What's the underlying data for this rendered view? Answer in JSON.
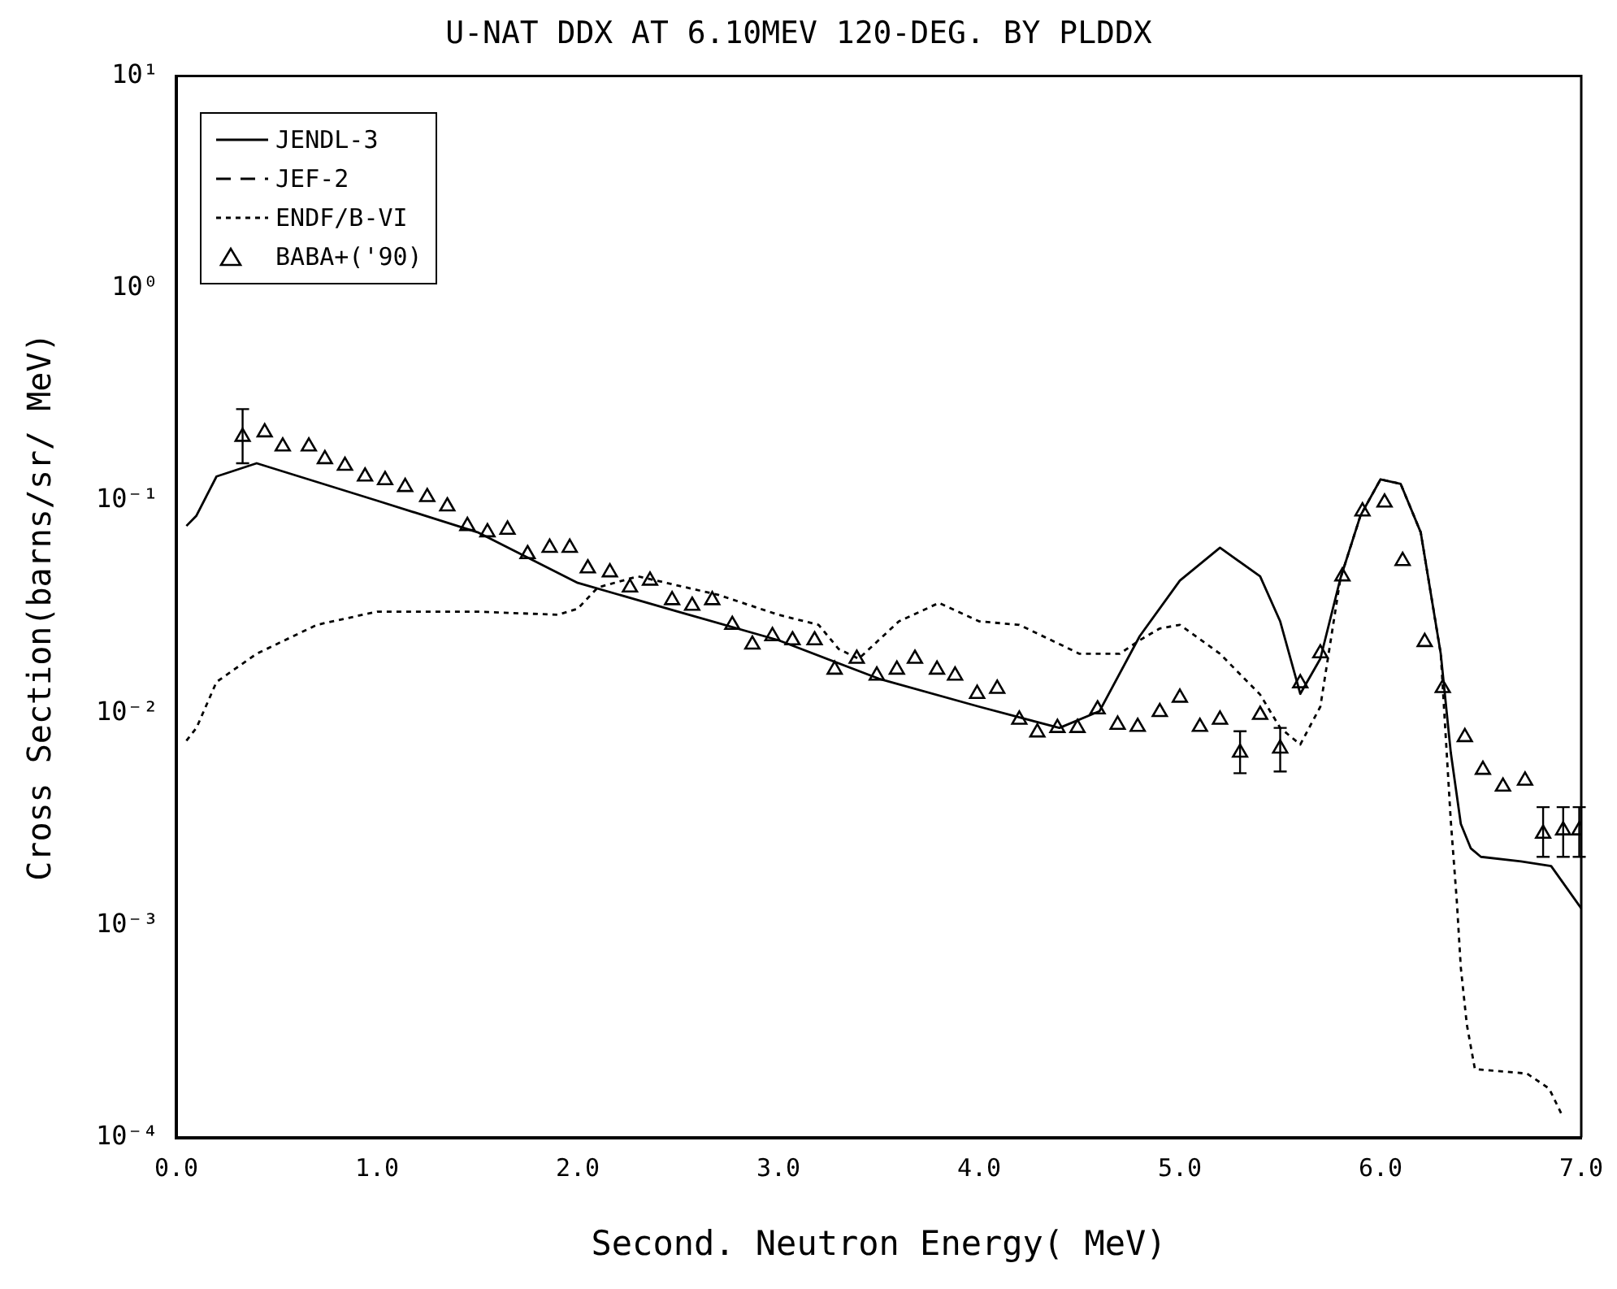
{
  "chart_data": {
    "type": "line",
    "title": "U-NAT DDX AT 6.10MEV 120-DEG. BY PLDDX",
    "xlabel": "Second. Neutron Energy( MeV)",
    "ylabel": "Cross Section(barns/sr/ MeV)",
    "xlim": [
      0,
      7
    ],
    "xticks": [
      {
        "value": 0,
        "label": "0.0"
      },
      {
        "value": 1,
        "label": "1.0"
      },
      {
        "value": 2,
        "label": "2.0"
      },
      {
        "value": 3,
        "label": "3.0"
      },
      {
        "value": 4,
        "label": "4.0"
      },
      {
        "value": 5,
        "label": "5.0"
      },
      {
        "value": 6,
        "label": "6.0"
      },
      {
        "value": 7,
        "label": "7.0"
      }
    ],
    "ylim": [
      0.0001,
      10
    ],
    "yticks": [
      {
        "value": 10,
        "label": "10¹"
      },
      {
        "value": 1,
        "label": "10⁰"
      },
      {
        "value": 0.1,
        "label": "10⁻¹"
      },
      {
        "value": 0.01,
        "label": "10⁻²"
      },
      {
        "value": 0.001,
        "label": "10⁻³"
      },
      {
        "value": 0.0001,
        "label": "10⁻⁴"
      }
    ],
    "log": "y",
    "grid": false,
    "legend": "top left",
    "series": [
      {
        "name": "JENDL-3",
        "line_style": "solid",
        "marker": "none",
        "color": "#000000",
        "x": [
          0.05,
          0.1,
          0.2,
          0.4,
          1.0,
          1.5,
          2.0,
          2.5,
          3.0,
          3.5,
          4.0,
          4.4,
          4.6,
          4.8,
          5.0,
          5.2,
          5.4,
          5.5,
          5.6,
          5.7,
          5.8,
          5.9,
          6.0,
          6.1,
          6.2,
          6.3,
          6.35,
          6.4,
          6.45,
          6.5,
          6.7,
          6.85,
          7.0
        ],
        "values": [
          0.076,
          0.085,
          0.13,
          0.15,
          0.1,
          0.071,
          0.041,
          0.03,
          0.022,
          0.0145,
          0.0107,
          0.0085,
          0.0102,
          0.023,
          0.042,
          0.06,
          0.044,
          0.027,
          0.0123,
          0.018,
          0.043,
          0.085,
          0.126,
          0.12,
          0.071,
          0.019,
          0.0065,
          0.003,
          0.0023,
          0.0021,
          0.002,
          0.0019,
          0.0012
        ]
      },
      {
        "name": "JEF-2",
        "line_style": "dashed",
        "marker": "none",
        "color": "#000000"
      },
      {
        "name": "ENDF/B-VI",
        "line_style": "dotted",
        "marker": "none",
        "color": "#000000",
        "x": [
          0.05,
          0.1,
          0.2,
          0.4,
          0.7,
          1.0,
          1.5,
          1.9,
          2.0,
          2.1,
          2.3,
          2.7,
          3.0,
          3.2,
          3.3,
          3.4,
          3.6,
          3.8,
          4.0,
          4.2,
          4.5,
          4.7,
          4.8,
          4.9,
          5.0,
          5.2,
          5.4,
          5.5,
          5.6,
          5.7,
          5.8,
          5.9,
          6.0,
          6.1,
          6.2,
          6.3,
          6.35,
          6.38,
          6.4,
          6.43,
          6.47,
          6.73,
          6.84,
          6.9
        ],
        "values": [
          0.0074,
          0.0085,
          0.014,
          0.019,
          0.026,
          0.03,
          0.03,
          0.029,
          0.031,
          0.039,
          0.044,
          0.036,
          0.029,
          0.026,
          0.02,
          0.018,
          0.027,
          0.033,
          0.027,
          0.026,
          0.019,
          0.019,
          0.022,
          0.025,
          0.026,
          0.019,
          0.0122,
          0.0085,
          0.0071,
          0.0107,
          0.043,
          0.085,
          0.126,
          0.12,
          0.071,
          0.019,
          0.0031,
          0.0013,
          0.00063,
          0.00034,
          0.00021,
          0.0002,
          0.00017,
          0.00013
        ]
      },
      {
        "name": "BABA+('90)",
        "type": "scatter",
        "marker": "triangle",
        "color": "#000000",
        "x": [
          0.33,
          0.44,
          0.53,
          0.66,
          0.74,
          0.84,
          0.94,
          1.04,
          1.14,
          1.25,
          1.35,
          1.45,
          1.55,
          1.65,
          1.75,
          1.86,
          1.96,
          2.05,
          2.16,
          2.26,
          2.36,
          2.47,
          2.57,
          2.67,
          2.77,
          2.87,
          2.97,
          3.07,
          3.18,
          3.28,
          3.39,
          3.49,
          3.59,
          3.68,
          3.79,
          3.88,
          3.99,
          4.09,
          4.2,
          4.29,
          4.39,
          4.49,
          4.59,
          4.69,
          4.79,
          4.9,
          5.0,
          5.1,
          5.2,
          5.3,
          5.4,
          5.5,
          5.6,
          5.7,
          5.81,
          5.91,
          6.02,
          6.11,
          6.22,
          6.31,
          6.42,
          6.51,
          6.61,
          6.72,
          6.81,
          6.91,
          6.99
        ],
        "values": [
          0.2,
          0.21,
          0.18,
          0.18,
          0.157,
          0.146,
          0.13,
          0.125,
          0.116,
          0.104,
          0.094,
          0.076,
          0.071,
          0.073,
          0.056,
          0.06,
          0.06,
          0.048,
          0.046,
          0.039,
          0.042,
          0.034,
          0.032,
          0.034,
          0.026,
          0.021,
          0.023,
          0.022,
          0.022,
          0.016,
          0.018,
          0.015,
          0.016,
          0.018,
          0.016,
          0.015,
          0.0123,
          0.013,
          0.0093,
          0.0081,
          0.0085,
          0.0085,
          0.0104,
          0.0088,
          0.0086,
          0.0101,
          0.0118,
          0.0086,
          0.0093,
          0.0065,
          0.0098,
          0.0068,
          0.0138,
          0.0191,
          0.044,
          0.089,
          0.098,
          0.052,
          0.0216,
          0.0131,
          0.0077,
          0.0054,
          0.0045,
          0.0048,
          0.0027,
          0.0028,
          0.0028
        ],
        "errors": [
          [
            0.15,
            0.27
          ],
          null,
          null,
          null,
          null,
          null,
          null,
          null,
          null,
          null,
          null,
          null,
          null,
          null,
          null,
          null,
          null,
          null,
          null,
          null,
          null,
          null,
          null,
          null,
          null,
          null,
          null,
          null,
          null,
          null,
          null,
          null,
          null,
          null,
          null,
          null,
          null,
          null,
          null,
          null,
          null,
          null,
          null,
          null,
          null,
          null,
          null,
          null,
          null,
          [
            0.0052,
            0.0082
          ],
          null,
          [
            0.0053,
            0.0085
          ],
          null,
          null,
          null,
          null,
          null,
          null,
          null,
          null,
          null,
          null,
          null,
          null,
          [
            0.0021,
            0.0036
          ],
          [
            0.0021,
            0.0036
          ],
          [
            0.0021,
            0.0036
          ]
        ]
      }
    ]
  }
}
